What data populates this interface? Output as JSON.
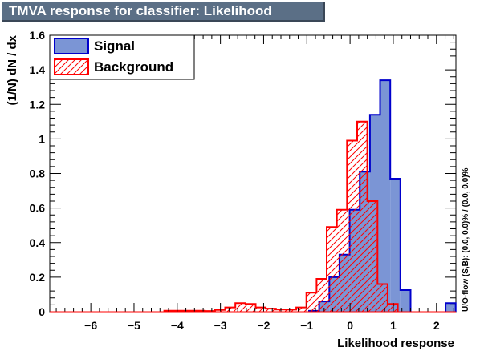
{
  "title": "TMVA response for classifier: Likelihood",
  "chart_data": {
    "type": "histogram",
    "title": "TMVA response for classifier: Likelihood",
    "xlabel": "Likelihood response",
    "ylabel": "(1/N) dN / dx",
    "xlim": [
      -6.95,
      2.45
    ],
    "ylim": [
      0,
      1.6
    ],
    "xticks": [
      -6,
      -5,
      -4,
      -3,
      -2,
      -1,
      0,
      1,
      2
    ],
    "yticks": [
      0,
      0.2,
      0.4,
      0.6,
      0.8,
      1.0,
      1.2,
      1.4,
      1.6
    ],
    "ytick_labels": [
      "0",
      "0.2",
      "0.4",
      "0.6",
      "0.8",
      "1",
      "1.2",
      "1.4",
      "1.6"
    ],
    "bin_width": 0.235,
    "legend_placement": "top-left",
    "overflow_note": "U/O-flow (S,B): (0.0, 0.0)% / (0.0, 0.0)%",
    "series": [
      {
        "name": "Signal",
        "style": "solid-fill",
        "fill_color": "#7b95d5",
        "line_color": "#0000cc",
        "bins": [
          {
            "x0": -0.95,
            "y": 0.005
          },
          {
            "x0": -0.715,
            "y": 0.06
          },
          {
            "x0": -0.48,
            "y": 0.2
          },
          {
            "x0": -0.245,
            "y": 0.33
          },
          {
            "x0": -0.01,
            "y": 0.59
          },
          {
            "x0": 0.225,
            "y": 0.81
          },
          {
            "x0": 0.46,
            "y": 1.14
          },
          {
            "x0": 0.695,
            "y": 1.34
          },
          {
            "x0": 0.93,
            "y": 0.77
          },
          {
            "x0": 1.165,
            "y": 0.125
          },
          {
            "x0": 2.21,
            "y": 0.05
          }
        ]
      },
      {
        "name": "Background",
        "style": "hatched",
        "fill_color": "#ff0000",
        "line_color": "#ff0000",
        "bins": [
          {
            "x0": -4.3,
            "y": 0.006
          },
          {
            "x0": -4.065,
            "y": 0.006
          },
          {
            "x0": -3.83,
            "y": 0.006
          },
          {
            "x0": -3.595,
            "y": 0.006
          },
          {
            "x0": -3.36,
            "y": 0.004
          },
          {
            "x0": -3.125,
            "y": 0.01
          },
          {
            "x0": -2.89,
            "y": 0.025
          },
          {
            "x0": -2.655,
            "y": 0.05
          },
          {
            "x0": -2.42,
            "y": 0.045
          },
          {
            "x0": -2.185,
            "y": 0.025
          },
          {
            "x0": -1.95,
            "y": 0.018
          },
          {
            "x0": -1.715,
            "y": 0.013
          },
          {
            "x0": -1.48,
            "y": 0.012
          },
          {
            "x0": -1.245,
            "y": 0.025
          },
          {
            "x0": -1.01,
            "y": 0.11
          },
          {
            "x0": -0.775,
            "y": 0.19
          },
          {
            "x0": -0.54,
            "y": 0.49
          },
          {
            "x0": -0.305,
            "y": 0.59
          },
          {
            "x0": -0.07,
            "y": 0.99
          },
          {
            "x0": 0.165,
            "y": 1.1
          },
          {
            "x0": 0.4,
            "y": 0.64
          },
          {
            "x0": 0.635,
            "y": 0.16
          },
          {
            "x0": 0.87,
            "y": 0.045
          }
        ]
      }
    ]
  }
}
